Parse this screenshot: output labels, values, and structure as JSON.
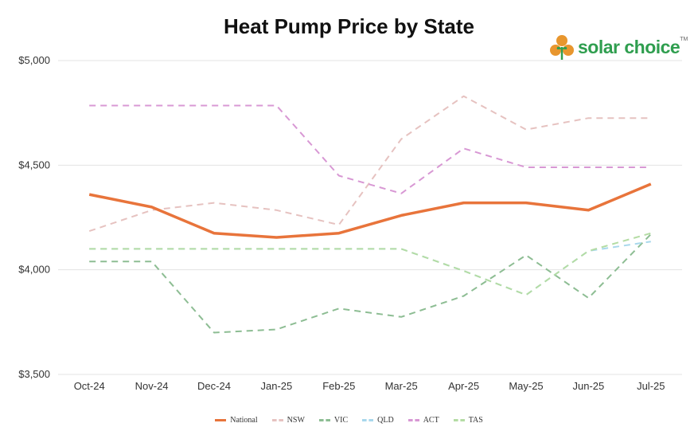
{
  "chart_data": {
    "type": "line",
    "title": "Heat Pump Price by State",
    "categories": [
      "Oct-24",
      "Nov-24",
      "Dec-24",
      "Jan-25",
      "Feb-25",
      "Mar-25",
      "Apr-25",
      "May-25",
      "Jun-25",
      "Jul-25"
    ],
    "ylim": [
      3500,
      5000
    ],
    "yticks": [
      "$3,500",
      "$4,000",
      "$4,500",
      "$5,000"
    ],
    "ytick_values": [
      3500,
      4000,
      4500,
      5000
    ],
    "grid": true,
    "legend_position": "bottom",
    "series": [
      {
        "name": "National",
        "color": "#e8743b",
        "style": "solid",
        "values": [
          4360,
          4300,
          4175,
          4155,
          4175,
          4260,
          4320,
          4320,
          4285,
          4410
        ]
      },
      {
        "name": "NSW",
        "color": "#e6c2c0",
        "style": "dashed",
        "values": [
          4185,
          4285,
          4320,
          4285,
          4215,
          4625,
          4830,
          4670,
          4725,
          4725
        ]
      },
      {
        "name": "VIC",
        "color": "#8dbd93",
        "style": "dashed",
        "values": [
          4040,
          4040,
          3700,
          3715,
          3815,
          3775,
          3875,
          4070,
          3865,
          4170
        ]
      },
      {
        "name": "QLD",
        "color": "#a8d8ec",
        "style": "dashed",
        "values": [
          4100,
          4100,
          4100,
          4100,
          4100,
          4100,
          3995,
          3880,
          4090,
          4135
        ]
      },
      {
        "name": "ACT",
        "color": "#d898d4",
        "style": "dashed",
        "values": [
          4785,
          4785,
          4785,
          4785,
          4450,
          4365,
          4580,
          4490,
          4490,
          4490
        ]
      },
      {
        "name": "TAS",
        "color": "#b4dca4",
        "style": "dashed",
        "values": [
          4100,
          4100,
          4100,
          4100,
          4100,
          4100,
          3995,
          3880,
          4090,
          4175
        ]
      }
    ]
  },
  "logo": {
    "text": "solar choice",
    "tm": "TM"
  }
}
